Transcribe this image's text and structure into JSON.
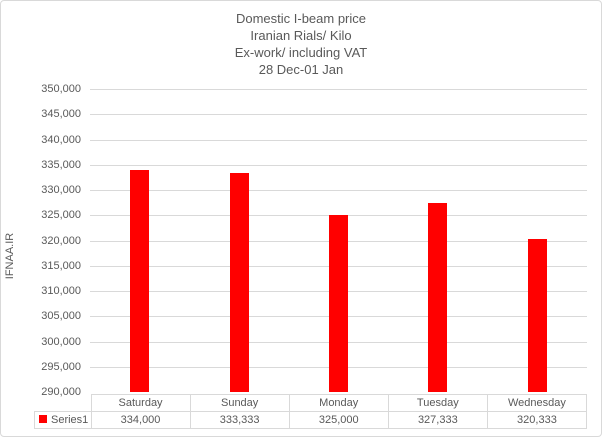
{
  "chart_data": {
    "type": "bar",
    "title_lines": [
      "Domestic I-beam price",
      "Iranian Rials/ Kilo",
      "Ex-work/ including VAT",
      "28 Dec-01 Jan"
    ],
    "title": "Domestic I-beam price Iranian Rials/ Kilo Ex-work/ including VAT 28 Dec-01 Jan",
    "categories": [
      "Saturday",
      "Sunday",
      "Monday",
      "Tuesday",
      "Wednesday"
    ],
    "series": [
      {
        "name": "Series1",
        "values": [
          334000,
          333333,
          325000,
          327333,
          320333
        ]
      }
    ],
    "value_labels": [
      "334,000",
      "333,333",
      "325,000",
      "327,333",
      "320,333"
    ],
    "xlabel": "",
    "ylabel": "IFNAA.IR",
    "ylim": [
      290000,
      350000
    ],
    "ytick_step": 5000,
    "ytick_labels": [
      "290,000",
      "295,000",
      "300,000",
      "305,000",
      "310,000",
      "315,000",
      "320,000",
      "325,000",
      "330,000",
      "335,000",
      "340,000",
      "345,000",
      "350,000"
    ],
    "grid": true,
    "legend_position": "bottom-left-data-table",
    "colors": {
      "bar": "#FF0000",
      "gridline": "#D9D9D9",
      "text": "#595959",
      "table_border": "#D9D9D9",
      "background": "#FFFFFF",
      "chart_border": "#D9D9D9"
    }
  }
}
